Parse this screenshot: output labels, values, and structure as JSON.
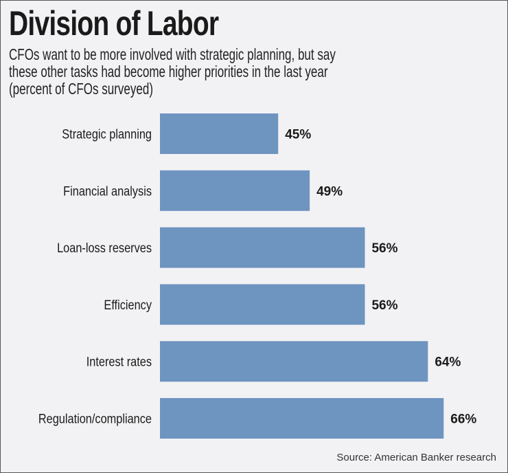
{
  "chart_data": {
    "type": "bar",
    "orientation": "horizontal",
    "title": "Division of Labor",
    "subtitle": [
      "CFOs want to be more involved with strategic planning, but say",
      "these other tasks had become higher priorities in the last year",
      "(percent of CFOs surveyed)"
    ],
    "categories": [
      "Strategic planning",
      "Financial analysis",
      "Loan-loss reserves",
      "Efficiency",
      "Interest rates",
      "Regulation/compliance"
    ],
    "values": [
      45,
      49,
      56,
      56,
      64,
      66
    ],
    "value_labels": [
      "45%",
      "49%",
      "56%",
      "56%",
      "64%",
      "66%"
    ],
    "unit": "%",
    "xlabel": "",
    "ylabel": "",
    "grid": false,
    "axis_baseline": 30,
    "bar_color": "#6e94c0",
    "source": "Source: American Banker research"
  }
}
